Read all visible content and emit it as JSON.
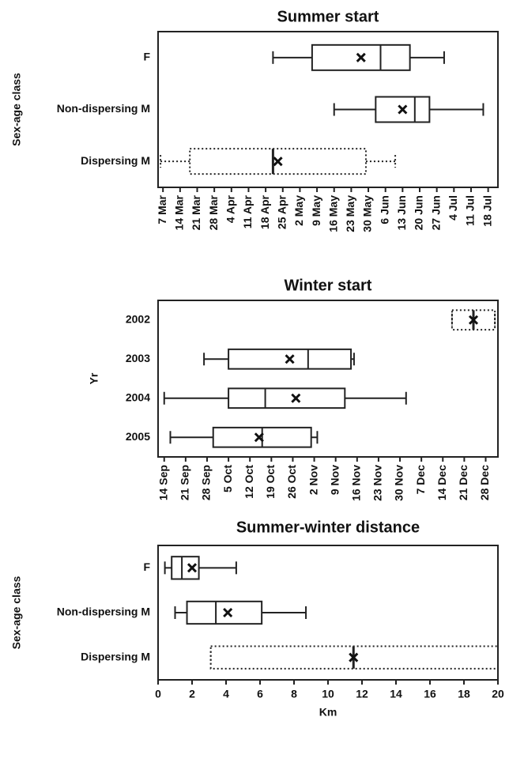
{
  "chart_data": [
    {
      "type": "box",
      "title": "Summer start",
      "ylabel": "Sex-age class",
      "categories": [
        "F",
        "Non-dispersing M",
        "Dispersing M"
      ],
      "boxes": [
        {
          "low": 111,
          "q1": 127,
          "median": 155,
          "q3": 167,
          "high": 181,
          "mean": 147,
          "dotted": false
        },
        {
          "low": 136,
          "q1": 153,
          "median": 169,
          "q3": 175,
          "high": 197,
          "mean": 164,
          "dotted": false
        },
        {
          "low": 65,
          "q1": 77,
          "median": 111,
          "q3": 149,
          "high": 161,
          "mean": 113,
          "dotted": true
        }
      ],
      "xlim": [
        64,
        203
      ],
      "xticks": [
        {
          "value": 66,
          "label": "7 Mar"
        },
        {
          "value": 73,
          "label": "14 Mar"
        },
        {
          "value": 80,
          "label": "21 Mar"
        },
        {
          "value": 87,
          "label": "28 Mar"
        },
        {
          "value": 94,
          "label": "4 Apr"
        },
        {
          "value": 101,
          "label": "11 Apr"
        },
        {
          "value": 108,
          "label": "18 Apr"
        },
        {
          "value": 115,
          "label": "25 Apr"
        },
        {
          "value": 122,
          "label": "2 May"
        },
        {
          "value": 129,
          "label": "9 May"
        },
        {
          "value": 136,
          "label": "16 May"
        },
        {
          "value": 143,
          "label": "23 May"
        },
        {
          "value": 150,
          "label": "30 May"
        },
        {
          "value": 157,
          "label": "6 Jun"
        },
        {
          "value": 164,
          "label": "13 Jun"
        },
        {
          "value": 171,
          "label": "20 Jun"
        },
        {
          "value": 178,
          "label": "27 Jun"
        },
        {
          "value": 185,
          "label": "4 Jul"
        },
        {
          "value": 192,
          "label": "11 Jul"
        },
        {
          "value": 199,
          "label": "18 Jul"
        }
      ],
      "rotate_xticks": true
    },
    {
      "type": "box",
      "title": "Winter start",
      "ylabel": "Yr",
      "categories": [
        "2002",
        "2003",
        "2004",
        "2005"
      ],
      "boxes": [
        {
          "low": 351,
          "q1": 351,
          "median": 358,
          "q3": 365,
          "high": 365,
          "mean": 358,
          "dotted": true
        },
        {
          "low": 270,
          "q1": 278,
          "median": 304,
          "q3": 318,
          "high": 319,
          "mean": 298,
          "dotted": false
        },
        {
          "low": 257,
          "q1": 278,
          "median": 290,
          "q3": 316,
          "high": 336,
          "mean": 300,
          "dotted": false
        },
        {
          "low": 259,
          "q1": 273,
          "median": 289,
          "q3": 305,
          "high": 307,
          "mean": 288,
          "dotted": false
        }
      ],
      "xlim": [
        255,
        366
      ],
      "xticks": [
        {
          "value": 257,
          "label": "14 Sep"
        },
        {
          "value": 264,
          "label": "21 Sep"
        },
        {
          "value": 271,
          "label": "28 Sep"
        },
        {
          "value": 278,
          "label": "5 Oct"
        },
        {
          "value": 285,
          "label": "12 Oct"
        },
        {
          "value": 292,
          "label": "19 Oct"
        },
        {
          "value": 299,
          "label": "26 Oct"
        },
        {
          "value": 306,
          "label": "2 Nov"
        },
        {
          "value": 313,
          "label": "9 Nov"
        },
        {
          "value": 320,
          "label": "16 Nov"
        },
        {
          "value": 327,
          "label": "23 Nov"
        },
        {
          "value": 334,
          "label": "30 Nov"
        },
        {
          "value": 341,
          "label": "7 Dec"
        },
        {
          "value": 348,
          "label": "14 Dec"
        },
        {
          "value": 355,
          "label": "21 Dec"
        },
        {
          "value": 362,
          "label": "28 Dec"
        }
      ],
      "rotate_xticks": true
    },
    {
      "type": "box",
      "title": "Summer-winter distance",
      "ylabel": "Sex-age class",
      "xlabel": "Km",
      "categories": [
        "F",
        "Non-dispersing M",
        "Dispersing M"
      ],
      "boxes": [
        {
          "low": 0.4,
          "q1": 0.8,
          "median": 1.4,
          "q3": 2.4,
          "high": 4.6,
          "mean": 2.0,
          "dotted": false
        },
        {
          "low": 1.0,
          "q1": 1.7,
          "median": 3.4,
          "q3": 6.1,
          "high": 8.7,
          "mean": 4.1,
          "dotted": false
        },
        {
          "low": 3.1,
          "q1": 3.1,
          "median": 11.5,
          "q3": 20,
          "high": 20,
          "mean": 11.5,
          "dotted": true
        }
      ],
      "xlim": [
        0,
        20
      ],
      "xticks": [
        0,
        2,
        4,
        6,
        8,
        10,
        12,
        14,
        16,
        18,
        20
      ],
      "rotate_xticks": false
    }
  ]
}
